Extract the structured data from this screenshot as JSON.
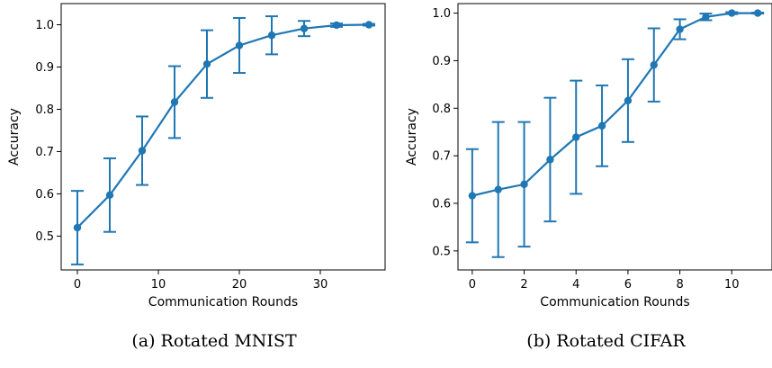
{
  "colors": {
    "series": "#1f77b4",
    "axis": "#000000"
  },
  "chart_data": [
    {
      "type": "line",
      "caption": "(a) Rotated MNIST",
      "xlabel": "Communication Rounds",
      "ylabel": "Accuracy",
      "xlim": [
        -2,
        38
      ],
      "ylim": [
        0.42,
        1.05
      ],
      "xticks": [
        0,
        10,
        20,
        30
      ],
      "yticks": [
        0.5,
        0.6,
        0.7,
        0.8,
        0.9,
        1.0
      ],
      "grid": false,
      "series": [
        {
          "x": [
            0,
            4,
            8,
            12,
            16,
            20,
            24,
            28,
            32,
            36
          ],
          "y": [
            0.52,
            0.597,
            0.702,
            0.817,
            0.907,
            0.951,
            0.975,
            0.991,
            0.999,
            1.0
          ],
          "yerr": [
            0.087,
            0.087,
            0.081,
            0.085,
            0.08,
            0.065,
            0.045,
            0.018,
            0.004,
            0.002
          ]
        }
      ]
    },
    {
      "type": "line",
      "caption": "(b) Rotated CIFAR",
      "xlabel": "Communication Rounds",
      "ylabel": "Accuracy",
      "xlim": [
        -0.55,
        11.55
      ],
      "ylim": [
        0.46,
        1.02
      ],
      "xticks": [
        0,
        2,
        4,
        6,
        8,
        10
      ],
      "yticks": [
        0.5,
        0.6,
        0.7,
        0.8,
        0.9,
        1.0
      ],
      "grid": false,
      "series": [
        {
          "x": [
            0,
            1,
            2,
            3,
            4,
            5,
            6,
            7,
            8,
            9,
            10,
            11
          ],
          "y": [
            0.616,
            0.629,
            0.64,
            0.692,
            0.739,
            0.763,
            0.816,
            0.891,
            0.966,
            0.992,
            1.0,
            1.0
          ],
          "yerr": [
            0.098,
            0.142,
            0.131,
            0.13,
            0.119,
            0.085,
            0.087,
            0.077,
            0.021,
            0.007,
            0.002,
            0.001
          ]
        }
      ]
    }
  ]
}
